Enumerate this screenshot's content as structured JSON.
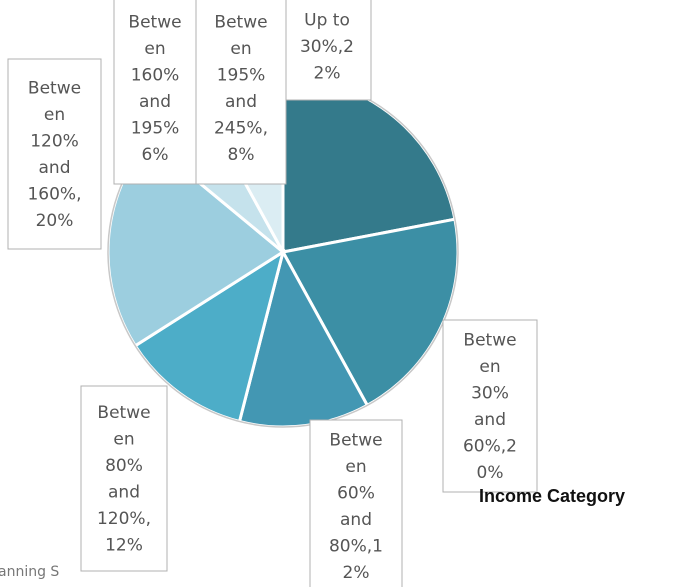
{
  "chart_data": {
    "type": "pie",
    "legend_title": "Income Category",
    "slices": [
      {
        "label": "Up to 30%,22%",
        "value": 22,
        "color": "#347a8b"
      },
      {
        "label": "Between 30% and 60%,20%",
        "value": 20,
        "color": "#3c8fa5"
      },
      {
        "label": "Between 60% and 80%,12%",
        "value": 12,
        "color": "#4397b3"
      },
      {
        "label": "Between 80% and 120%,12%",
        "value": 12,
        "color": "#4dadc8"
      },
      {
        "label": "Between 120% and 160%,20%",
        "value": 20,
        "color": "#9ccedf"
      },
      {
        "label": "Between 160% and 195%,6%",
        "value": 6,
        "color": "#c5e2ec"
      },
      {
        "label": "Between 195% and 245%,8%",
        "value": 8,
        "color": "#dbedf3"
      }
    ],
    "callouts": [
      [
        "Up to",
        "30%,2",
        "2%"
      ],
      [
        "Betwe",
        "en",
        "30%",
        "and",
        "60%,2",
        "0%"
      ],
      [
        "Betwe",
        "en",
        "60%",
        "and",
        "80%,1",
        "2%"
      ],
      [
        "Betwe",
        "en",
        "80%",
        "and",
        "120%,",
        "12%"
      ],
      [
        "Betwe",
        "en",
        "120%",
        "and",
        "160%,",
        "20%"
      ],
      [
        "Betwe",
        "en",
        "160%",
        "and",
        "195%",
        "6%"
      ],
      [
        "Betwe",
        "en",
        "195%",
        "and",
        "245%,",
        "8%"
      ]
    ]
  },
  "footer": {
    "partial_text": "anning S"
  }
}
